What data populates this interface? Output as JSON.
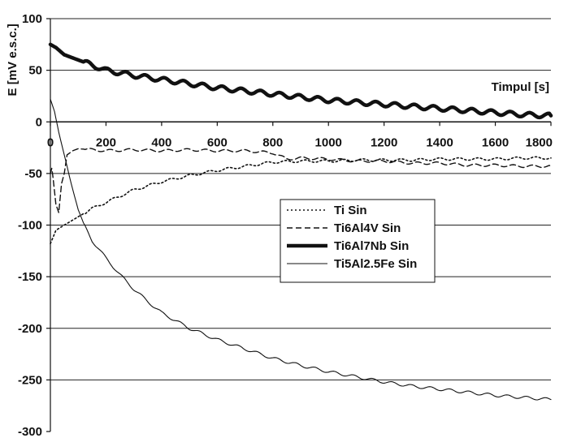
{
  "chart_data": {
    "type": "line",
    "xlabel": "Timpul [s]",
    "ylabel": "E [mV e.s.c.]",
    "xlim": [
      0,
      1800
    ],
    "ylim": [
      -300,
      100
    ],
    "x_ticks": [
      "0",
      "200",
      "400",
      "600",
      "800",
      "1000",
      "1200",
      "1400",
      "1600",
      "1800"
    ],
    "y_ticks": [
      "100",
      "50",
      "0",
      "-50",
      "-100",
      "-150",
      "-200",
      "-250",
      "-300"
    ],
    "grid": "horizontal",
    "legend_position": "center-right",
    "series": [
      {
        "name": "Ti Sin",
        "style": "dotted",
        "width": 1.6,
        "color": "#111111",
        "x": [
          0,
          20,
          50,
          100,
          150,
          200,
          300,
          400,
          500,
          600,
          700,
          800,
          900,
          1000,
          1100,
          1200,
          1300,
          1400,
          1500,
          1600,
          1700,
          1800
        ],
        "y": [
          -118,
          -105,
          -100,
          -92,
          -84,
          -78,
          -66,
          -58,
          -52,
          -47,
          -43,
          -39,
          -38,
          -38,
          -37,
          -37,
          -37,
          -36,
          -36,
          -36,
          -35,
          -35
        ]
      },
      {
        "name": "Ti6Al4V Sin",
        "style": "dashed",
        "width": 1.4,
        "color": "#111111",
        "x": [
          0,
          5,
          10,
          20,
          30,
          40,
          50,
          60,
          80,
          100,
          150,
          200,
          300,
          400,
          500,
          600,
          700,
          800,
          850,
          900,
          1000,
          1100,
          1200,
          1300,
          1400,
          1500,
          1600,
          1700,
          1800
        ],
        "y": [
          -50,
          -45,
          -55,
          -80,
          -88,
          -60,
          -50,
          -32,
          -28,
          -26,
          -27,
          -28,
          -27,
          -28,
          -27,
          -28,
          -28,
          -30,
          -36,
          -35,
          -36,
          -38,
          -38,
          -40,
          -40,
          -42,
          -42,
          -43,
          -43
        ]
      },
      {
        "name": "Ti6Al7Nb Sin",
        "style": "solid",
        "width": 4.5,
        "color": "#111111",
        "x": [
          0,
          20,
          50,
          100,
          150,
          200,
          300,
          400,
          500,
          600,
          700,
          800,
          900,
          1000,
          1100,
          1200,
          1300,
          1400,
          1500,
          1600,
          1700,
          1800
        ],
        "y": [
          75,
          72,
          65,
          60,
          55,
          50,
          45,
          41,
          37,
          33,
          30,
          27,
          24,
          21,
          19,
          17,
          15,
          13,
          11,
          9,
          7,
          6
        ]
      },
      {
        "name": "Ti5Al2.5Fe Sin",
        "style": "solid",
        "width": 1.1,
        "color": "#111111",
        "x": [
          0,
          15,
          30,
          50,
          75,
          100,
          125,
          150,
          200,
          250,
          300,
          350,
          400,
          500,
          600,
          700,
          800,
          900,
          1000,
          1100,
          1200,
          1300,
          1400,
          1500,
          1600,
          1700,
          1800
        ],
        "y": [
          22,
          10,
          -10,
          -32,
          -60,
          -85,
          -102,
          -115,
          -132,
          -148,
          -162,
          -174,
          -185,
          -200,
          -211,
          -220,
          -229,
          -236,
          -242,
          -247,
          -252,
          -256,
          -259,
          -262,
          -265,
          -267,
          -269
        ]
      }
    ]
  }
}
